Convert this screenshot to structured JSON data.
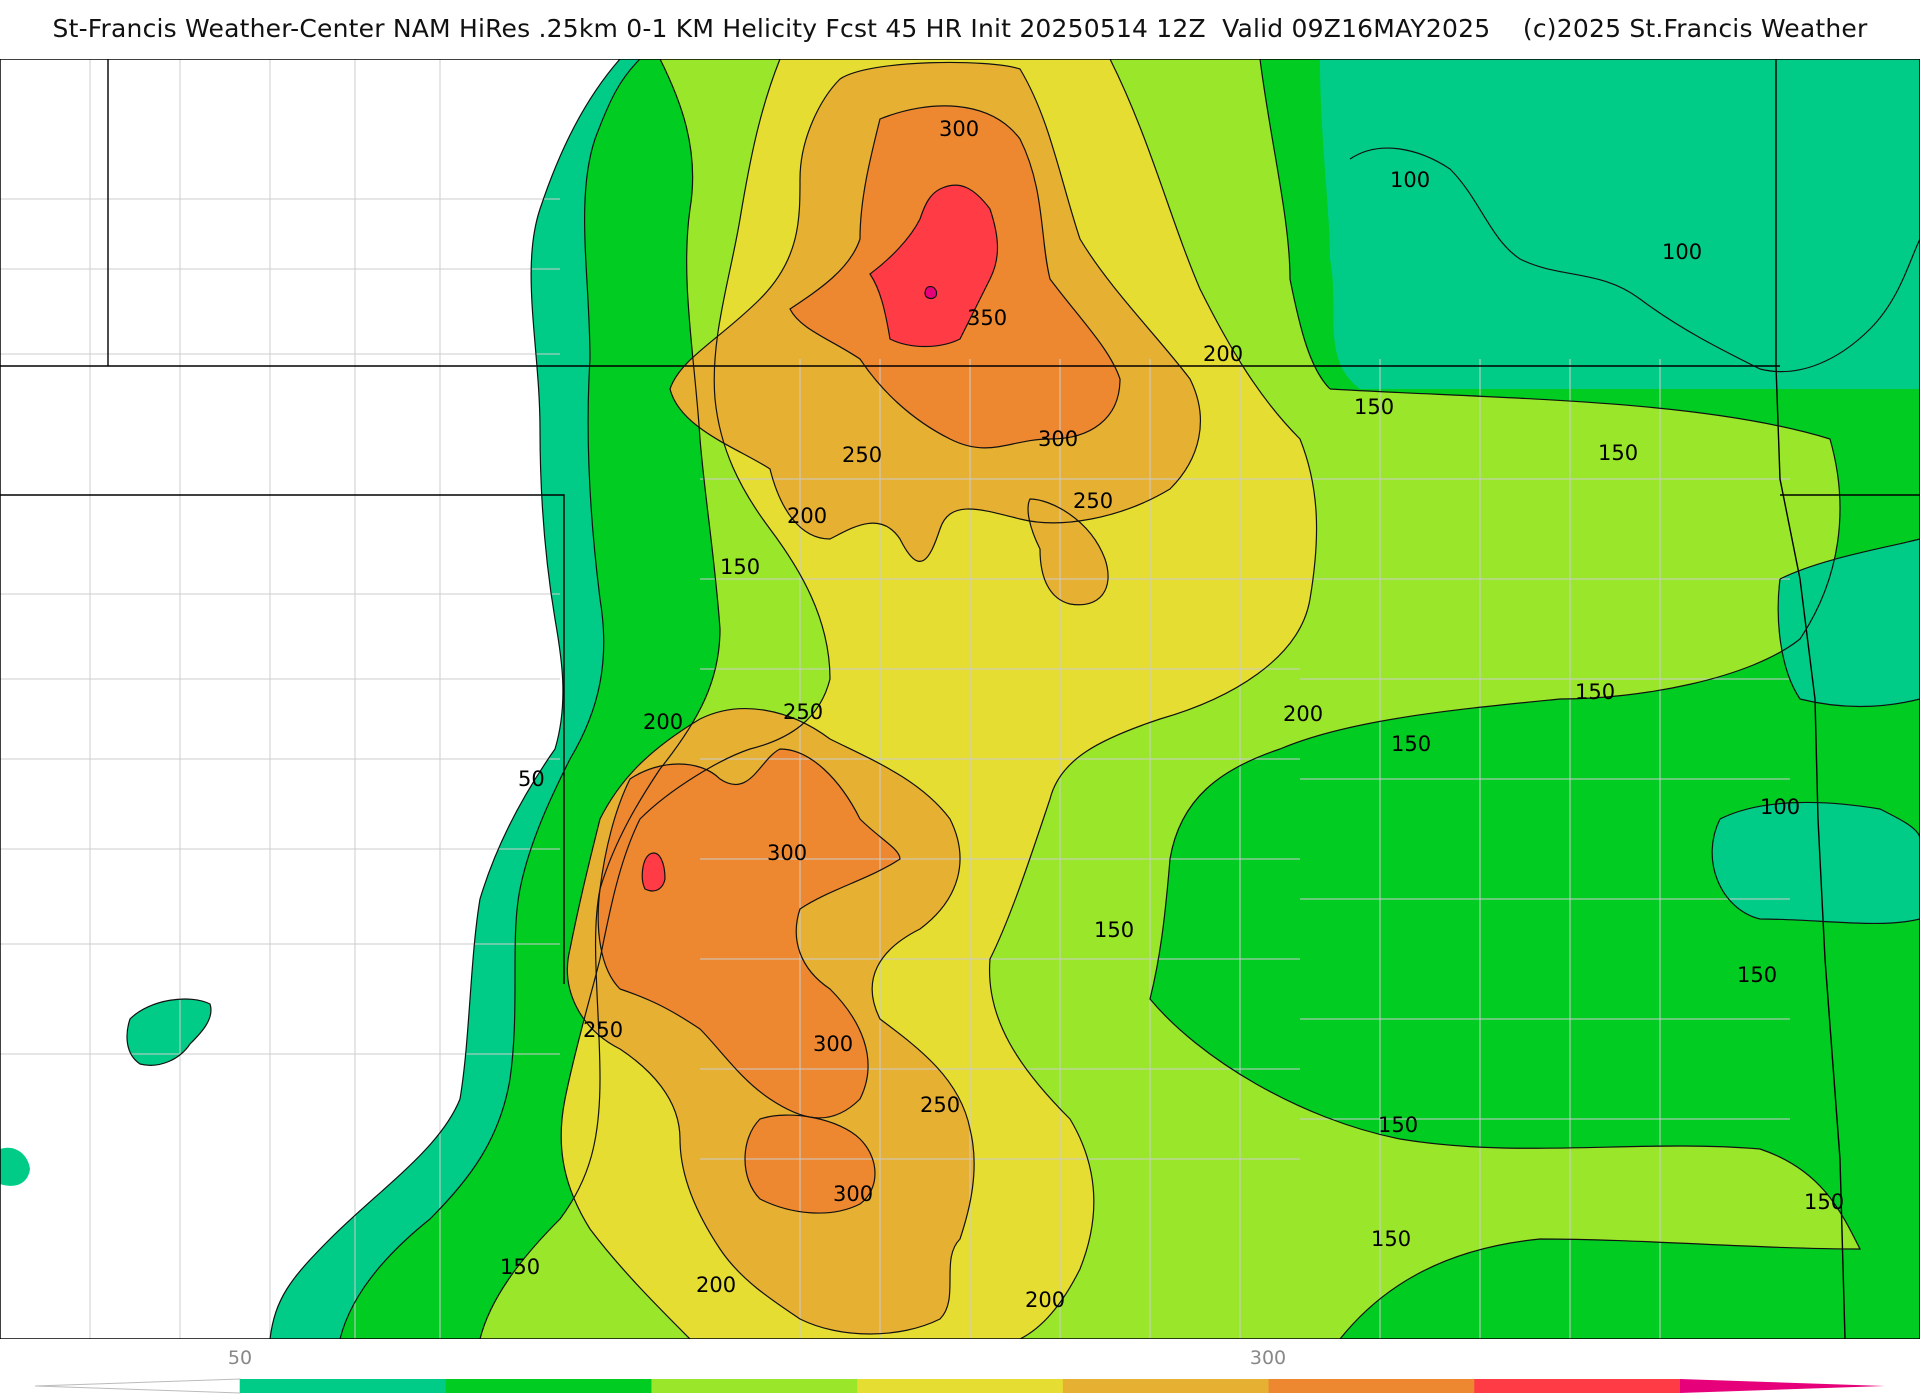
{
  "header": {
    "title": "St-Francis Weather-Center NAM HiRes .25km 0-1 KM Helicity Fcst 45 HR Init 20250514 12Z  Valid 09Z16MAY2025",
    "copyright": "(c)2025 St.Francis Weather"
  },
  "colors": {
    "c50": "#00cc88",
    "c100": "#00cc22",
    "c150": "#99e62a",
    "c200": "#e6dd33",
    "c250": "#e6b033",
    "c300": "#ee8830",
    "c350": "#ff3c46",
    "c400": "#e6007a",
    "unshaded": "#ffffff",
    "contour": "#111111",
    "boundary": "#000000",
    "county": "#bbbbbb"
  },
  "contour_labels": [
    {
      "text": "300"
    },
    {
      "text": "350"
    },
    {
      "text": "300"
    },
    {
      "text": "250"
    },
    {
      "text": "250"
    },
    {
      "text": "200"
    },
    {
      "text": "200"
    },
    {
      "text": "150"
    },
    {
      "text": "100"
    },
    {
      "text": "100"
    },
    {
      "text": "150"
    },
    {
      "text": "150"
    },
    {
      "text": "250"
    },
    {
      "text": "200"
    },
    {
      "text": "200"
    },
    {
      "text": "150"
    },
    {
      "text": "150"
    },
    {
      "text": "100"
    },
    {
      "text": "50"
    },
    {
      "text": "300"
    },
    {
      "text": "150"
    },
    {
      "text": "150"
    },
    {
      "text": "250"
    },
    {
      "text": "300"
    },
    {
      "text": "250"
    },
    {
      "text": "150"
    },
    {
      "text": "300"
    },
    {
      "text": "150"
    },
    {
      "text": "150"
    },
    {
      "text": "150"
    },
    {
      "text": "200"
    },
    {
      "text": "200"
    }
  ],
  "colorbar": {
    "tick_labels": [
      "50",
      "300"
    ],
    "bins": [
      {
        "key": "c50"
      },
      {
        "key": "c100"
      },
      {
        "key": "c150"
      },
      {
        "key": "c200"
      },
      {
        "key": "c250"
      },
      {
        "key": "c300"
      },
      {
        "key": "c350"
      }
    ]
  }
}
